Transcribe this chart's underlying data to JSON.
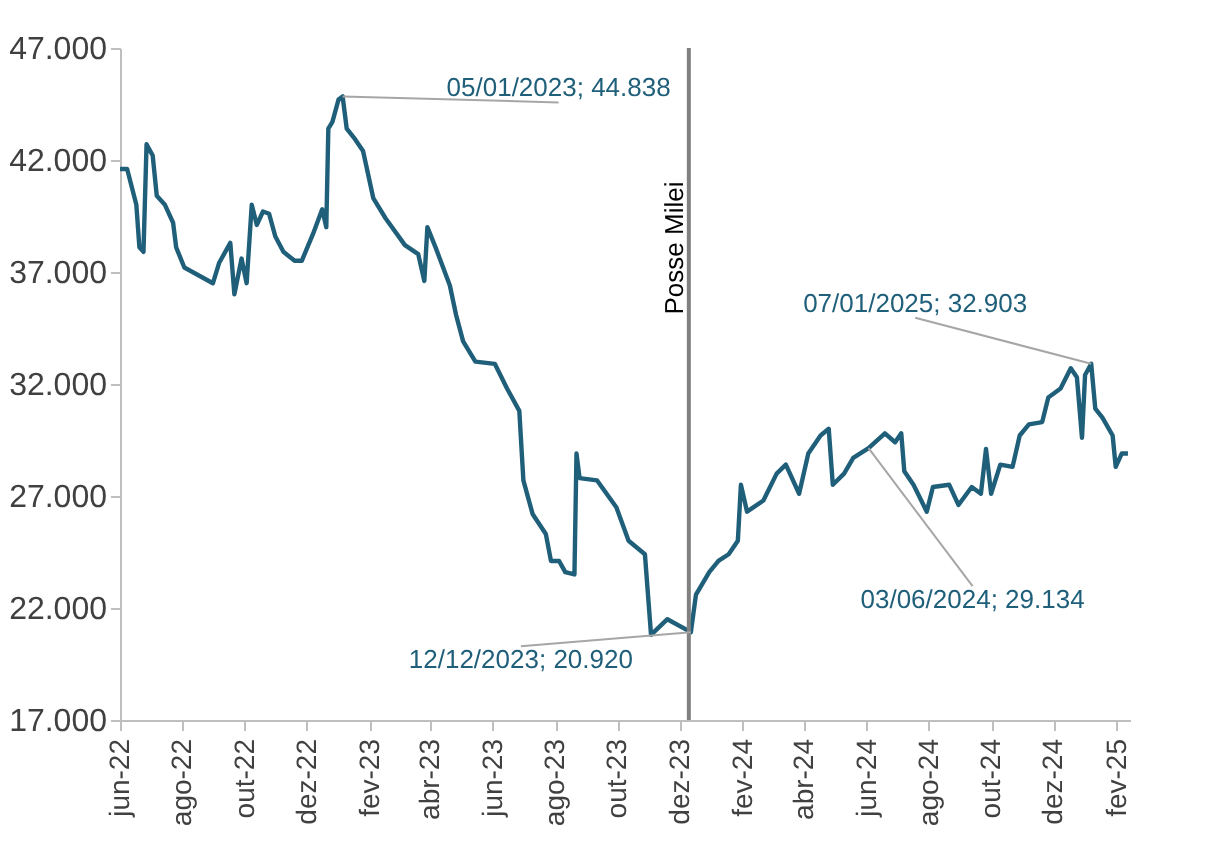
{
  "chart_data": {
    "type": "line",
    "x": [
      "2022-06-01",
      "2022-06-08",
      "2022-06-17",
      "2022-06-20",
      "2022-06-24",
      "2022-06-27",
      "2022-07-03",
      "2022-07-07",
      "2022-07-15",
      "2022-07-23",
      "2022-07-26",
      "2022-08-03",
      "2022-08-15",
      "2022-08-31",
      "2022-09-06",
      "2022-09-17",
      "2022-09-21",
      "2022-09-28",
      "2022-10-03",
      "2022-10-08",
      "2022-10-13",
      "2022-10-19",
      "2022-10-25",
      "2022-10-31",
      "2022-11-08",
      "2022-11-19",
      "2022-11-26",
      "2022-12-07",
      "2022-12-16",
      "2022-12-20",
      "2022-12-22",
      "2022-12-26",
      "2023-01-01",
      "2023-01-05",
      "2023-01-09",
      "2023-01-16",
      "2023-01-25",
      "2023-02-04",
      "2023-02-16",
      "2023-03-07",
      "2023-03-20",
      "2023-03-26",
      "2023-03-29",
      "2023-04-06",
      "2023-04-20",
      "2023-04-26",
      "2023-05-03",
      "2023-05-15",
      "2023-06-03",
      "2023-06-15",
      "2023-06-27",
      "2023-07-01",
      "2023-07-10",
      "2023-07-23",
      "2023-07-28",
      "2023-08-05",
      "2023-08-11",
      "2023-08-20",
      "2023-08-22",
      "2023-08-25",
      "2023-09-11",
      "2023-09-30",
      "2023-10-12",
      "2023-10-28",
      "2023-11-03",
      "2023-11-19",
      "2023-12-12",
      "2023-12-17",
      "2023-12-30",
      "2024-01-08",
      "2024-01-18",
      "2024-01-27",
      "2024-01-30",
      "2024-02-05",
      "2024-02-21",
      "2024-03-05",
      "2024-03-14",
      "2024-03-27",
      "2024-04-05",
      "2024-04-17",
      "2024-04-25",
      "2024-04-29",
      "2024-05-10",
      "2024-05-19",
      "2024-06-03",
      "2024-06-19",
      "2024-06-29",
      "2024-07-05",
      "2024-07-08",
      "2024-07-17",
      "2024-07-30",
      "2024-08-05",
      "2024-08-21",
      "2024-08-30",
      "2024-09-12",
      "2024-09-21",
      "2024-09-26",
      "2024-10-01",
      "2024-10-10",
      "2024-10-22",
      "2024-10-29",
      "2024-11-07",
      "2024-11-20",
      "2024-11-26",
      "2024-12-08",
      "2024-12-18",
      "2024-12-24",
      "2024-12-29",
      "2025-01-01",
      "2025-01-07",
      "2025-01-11",
      "2025-01-18",
      "2025-01-28",
      "2025-01-31",
      "2025-02-06",
      "2025-02-12"
    ],
    "series": [
      {
        "color": "#1f5f7a",
        "values": [
          41600,
          41600,
          40000,
          38100,
          37900,
          42700,
          42200,
          40400,
          40000,
          39200,
          38100,
          37200,
          36900,
          36500,
          37400,
          38300,
          36000,
          37600,
          36500,
          40000,
          39100,
          39700,
          39600,
          38600,
          37900,
          37500,
          37500,
          38700,
          39800,
          39000,
          43400,
          43700,
          44700,
          44838,
          43400,
          43000,
          42400,
          40300,
          39400,
          38200,
          37800,
          36600,
          39000,
          38100,
          36400,
          35100,
          33900,
          33000,
          32900,
          31800,
          30800,
          27700,
          26200,
          25300,
          24100,
          24100,
          23600,
          23500,
          28900,
          27800,
          27700,
          26500,
          25000,
          24400,
          20800,
          21500,
          20920,
          22600,
          23600,
          24100,
          24400,
          25000,
          27500,
          26300,
          26800,
          28000,
          28400,
          27100,
          28900,
          29700,
          30000,
          27500,
          28000,
          28700,
          29134,
          29800,
          29400,
          29800,
          28100,
          27500,
          26300,
          27400,
          27500,
          26600,
          27400,
          27100,
          29100,
          27100,
          28400,
          28300,
          29700,
          30200,
          30300,
          31400,
          31800,
          32700,
          32300,
          29600,
          32400,
          32903,
          30900,
          30500,
          29700,
          28300,
          28900,
          28900
        ]
      }
    ],
    "xlim": [
      "2022-06-01",
      "2025-02-14"
    ],
    "xticks": [
      {
        "value": "2022-06-01",
        "label": "jun-22"
      },
      {
        "value": "2022-08-01",
        "label": "ago-22"
      },
      {
        "value": "2022-10-01",
        "label": "out-22"
      },
      {
        "value": "2022-12-01",
        "label": "dez-22"
      },
      {
        "value": "2023-02-01",
        "label": "fev-23"
      },
      {
        "value": "2023-04-01",
        "label": "abr-23"
      },
      {
        "value": "2023-06-01",
        "label": "jun-23"
      },
      {
        "value": "2023-08-01",
        "label": "ago-23"
      },
      {
        "value": "2023-10-01",
        "label": "out-23"
      },
      {
        "value": "2023-12-01",
        "label": "dez-23"
      },
      {
        "value": "2024-02-01",
        "label": "fev-24"
      },
      {
        "value": "2024-04-01",
        "label": "abr-24"
      },
      {
        "value": "2024-06-01",
        "label": "jun-24"
      },
      {
        "value": "2024-08-01",
        "label": "ago-24"
      },
      {
        "value": "2024-10-01",
        "label": "out-24"
      },
      {
        "value": "2024-12-01",
        "label": "dez-24"
      },
      {
        "value": "2025-02-01",
        "label": "fev-25"
      }
    ],
    "ylim": [
      17000,
      47000
    ],
    "yticks": [
      {
        "value": 17000,
        "label": "17.000"
      },
      {
        "value": 22000,
        "label": "22.000"
      },
      {
        "value": 27000,
        "label": "27.000"
      },
      {
        "value": 32000,
        "label": "32.000"
      },
      {
        "value": 37000,
        "label": "37.000"
      },
      {
        "value": 42000,
        "label": "42.000"
      },
      {
        "value": 47000,
        "label": "47.000"
      }
    ],
    "ref_lines": [
      {
        "axis": "x",
        "value": "2023-12-10",
        "label": "Posse Milei",
        "color": "#808080"
      }
    ],
    "annotations": [
      {
        "text": "05/01/2023; 44.838",
        "x": "2023-01-05",
        "y": 44838
      },
      {
        "text": "12/12/2023; 20.920",
        "x": "2023-12-12",
        "y": 20920
      },
      {
        "text": "03/06/2024; 29.134",
        "x": "2024-06-03",
        "y": 29134
      },
      {
        "text": "07/01/2025; 32.903",
        "x": "2025-01-07",
        "y": 32903
      }
    ],
    "grid": false,
    "marker": "none",
    "line_style": "solid"
  }
}
